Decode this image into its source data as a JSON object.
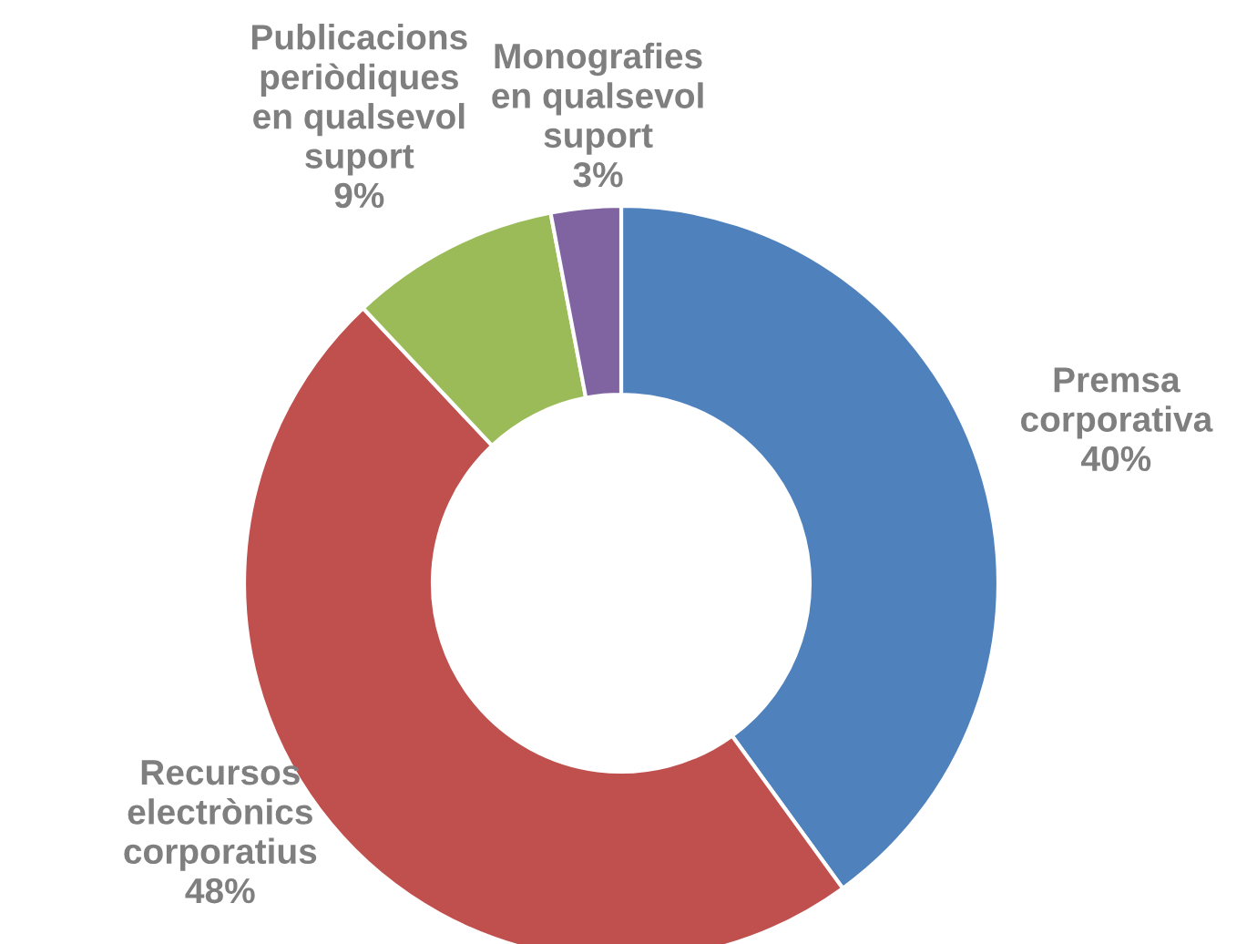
{
  "chart_data": {
    "type": "donut",
    "categories": [
      "Premsa\ncorporativa",
      "Recursos\nelectrònics\ncorporatius",
      "Publicacions\nperiòdiques\nen qualsevol\nsuport",
      "Monografies\nen qualsevol\nsuport"
    ],
    "values": [
      40,
      48,
      9,
      3
    ],
    "value_labels": [
      "40%",
      "48%",
      "9%",
      "3%"
    ],
    "colors": [
      "#4f81bd",
      "#c0504d",
      "#9bbb59",
      "#8064a2"
    ]
  }
}
